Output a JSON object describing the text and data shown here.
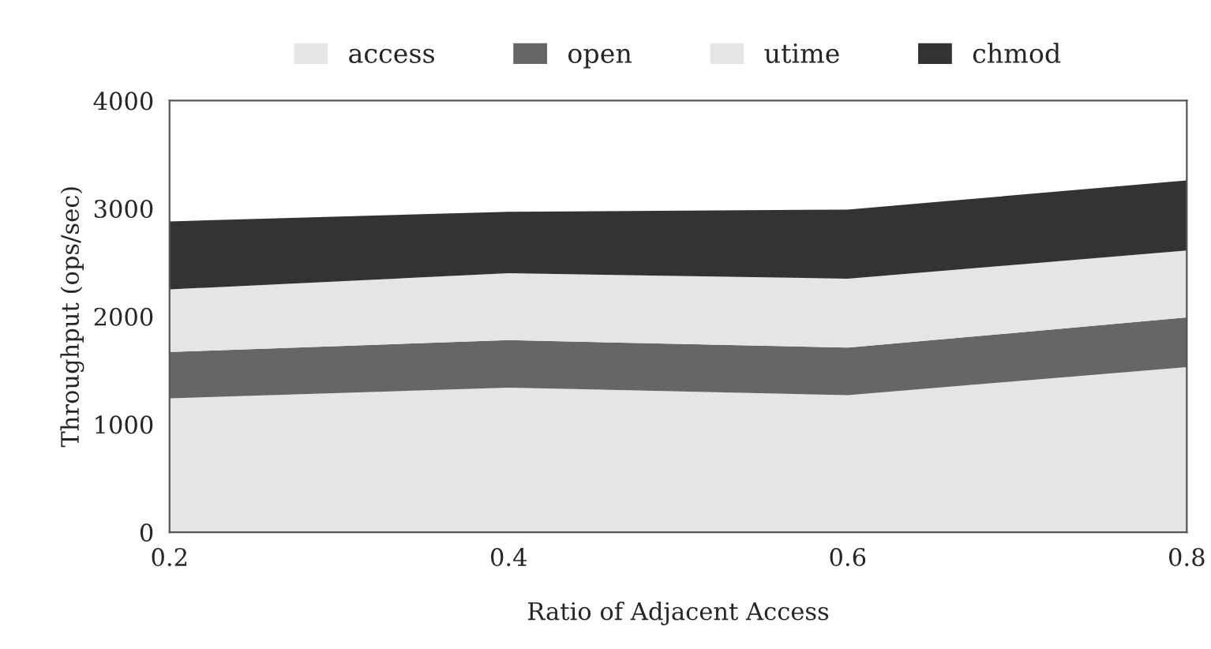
{
  "chart_data": {
    "type": "area",
    "stacked": true,
    "xlabel": "Ratio of Adjacent Access",
    "ylabel": "Throughput (ops/sec)",
    "x": [
      0.2,
      0.4,
      0.6,
      0.8
    ],
    "xlim": [
      0.2,
      0.8
    ],
    "xticks": [
      0.2,
      0.4,
      0.6,
      0.8
    ],
    "ylim": [
      0,
      4000
    ],
    "yticks": [
      0,
      1000,
      2000,
      3000,
      4000
    ],
    "series": [
      {
        "name": "access",
        "color": "#e5e5e5",
        "values": [
          1240,
          1340,
          1270,
          1530
        ]
      },
      {
        "name": "open",
        "color": "#666666",
        "values": [
          430,
          440,
          440,
          460
        ]
      },
      {
        "name": "utime",
        "color": "#e5e5e5",
        "values": [
          580,
          620,
          640,
          620
        ]
      },
      {
        "name": "chmod",
        "color": "#333333",
        "values": [
          630,
          570,
          640,
          650
        ]
      }
    ],
    "legend": "top",
    "grid": false
  }
}
